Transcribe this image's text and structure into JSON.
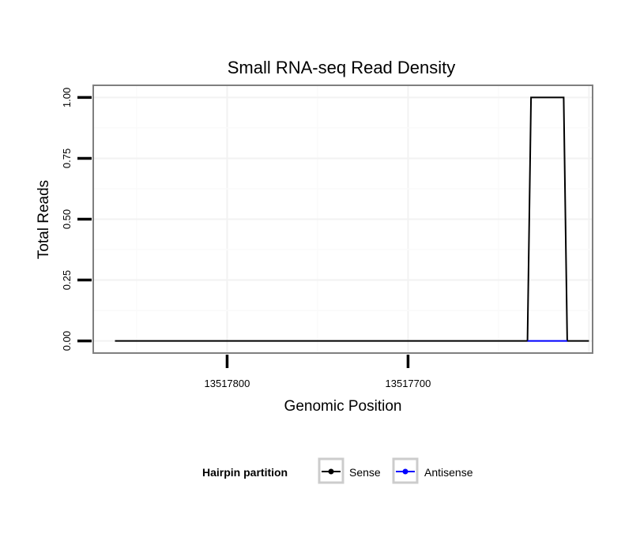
{
  "chart_data": {
    "type": "line",
    "title": "Small RNA-seq Read Density",
    "xlabel": "Genomic Position",
    "ylabel": "Total Reads",
    "x_reversed": true,
    "xlim": [
      13517874,
      13517598
    ],
    "ylim": [
      -0.05,
      1.05
    ],
    "x_ticks": [
      13517800,
      13517700
    ],
    "x_tick_labels": [
      "13517800",
      "13517700"
    ],
    "y_ticks": [
      0,
      0.25,
      0.5,
      0.75,
      1.0
    ],
    "y_tick_labels": [
      "0.00",
      "0.25",
      "0.50",
      "0.75",
      "1.00"
    ],
    "grid": true,
    "legend": {
      "title": "Hairpin partition",
      "position": "bottom"
    },
    "series": [
      {
        "name": "Sense",
        "color": "#000000",
        "x": [
          13517862,
          13517634,
          13517632,
          13517614,
          13517612,
          13517600
        ],
        "y": [
          0,
          0,
          1,
          1,
          0,
          0
        ]
      },
      {
        "name": "Antisense",
        "color": "#0000ff",
        "x": [
          13517634,
          13517612
        ],
        "y": [
          0,
          0
        ]
      }
    ]
  }
}
